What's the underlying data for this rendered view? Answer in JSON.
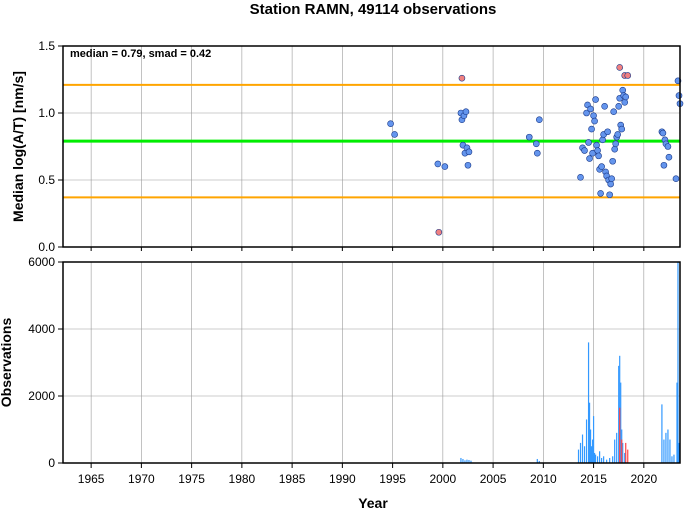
{
  "chart_data": [
    {
      "type": "scatter",
      "title": "Station RAMN, 49114 observations",
      "ylabel": "Median log(A/T) [nm/s]",
      "xlim": [
        1962.2,
        2023.6
      ],
      "ylim": [
        0,
        1.5
      ],
      "yticks": [
        "0.0",
        "0.5",
        "1.0",
        "1.5"
      ],
      "grid": true,
      "annotation": "median = 0.79, smad = 0.42",
      "reference_lines": [
        {
          "y": 1.21,
          "color": "#ffa500"
        },
        {
          "y": 0.79,
          "color": "#00ee00"
        },
        {
          "y": 0.37,
          "color": "#ffa500"
        }
      ],
      "series": [
        {
          "color": "#6495ed",
          "points": [
            [
              1994.8,
              0.92
            ],
            [
              1995.2,
              0.84
            ],
            [
              1999.5,
              0.62
            ],
            [
              2000.2,
              0.6
            ],
            [
              2001.8,
              1.0
            ],
            [
              2001.9,
              0.95
            ],
            [
              2002.1,
              0.98
            ],
            [
              2002.3,
              1.01
            ],
            [
              2002.0,
              0.76
            ],
            [
              2002.2,
              0.7
            ],
            [
              2002.4,
              0.74
            ],
            [
              2002.6,
              0.71
            ],
            [
              2002.5,
              0.61
            ],
            [
              2008.6,
              0.82
            ],
            [
              2009.3,
              0.77
            ],
            [
              2009.4,
              0.7
            ],
            [
              2009.6,
              0.95
            ],
            [
              2013.7,
              0.52
            ],
            [
              2013.9,
              0.74
            ],
            [
              2014.1,
              0.72
            ],
            [
              2014.3,
              1.0
            ],
            [
              2014.4,
              1.06
            ],
            [
              2014.5,
              0.78
            ],
            [
              2014.6,
              0.66
            ],
            [
              2014.7,
              1.03
            ],
            [
              2014.8,
              0.88
            ],
            [
              2014.9,
              0.7
            ],
            [
              2015.0,
              0.98
            ],
            [
              2015.1,
              0.94
            ],
            [
              2015.2,
              1.1
            ],
            [
              2015.3,
              0.76
            ],
            [
              2015.4,
              0.72
            ],
            [
              2015.5,
              0.68
            ],
            [
              2015.6,
              0.58
            ],
            [
              2015.7,
              0.4
            ],
            [
              2015.8,
              0.6
            ],
            [
              2015.9,
              0.8
            ],
            [
              2016.0,
              0.84
            ],
            [
              2016.1,
              1.05
            ],
            [
              2016.2,
              0.56
            ],
            [
              2016.3,
              0.53
            ],
            [
              2016.4,
              0.86
            ],
            [
              2016.5,
              0.5
            ],
            [
              2016.6,
              0.39
            ],
            [
              2016.7,
              0.47
            ],
            [
              2016.8,
              0.51
            ],
            [
              2016.9,
              0.64
            ],
            [
              2017.0,
              1.01
            ],
            [
              2017.1,
              0.73
            ],
            [
              2017.2,
              0.77
            ],
            [
              2017.3,
              0.82
            ],
            [
              2017.4,
              0.84
            ],
            [
              2017.5,
              1.05
            ],
            [
              2017.6,
              1.11
            ],
            [
              2017.7,
              0.91
            ],
            [
              2017.8,
              0.88
            ],
            [
              2017.9,
              1.17
            ],
            [
              2018.0,
              1.13
            ],
            [
              2018.1,
              1.08
            ],
            [
              2018.2,
              1.12
            ],
            [
              2021.8,
              0.86
            ],
            [
              2021.9,
              0.85
            ],
            [
              2022.0,
              0.61
            ],
            [
              2022.1,
              0.8
            ],
            [
              2022.2,
              0.77
            ],
            [
              2022.4,
              0.75
            ],
            [
              2022.5,
              0.67
            ],
            [
              2023.2,
              0.51
            ],
            [
              2023.4,
              1.24
            ],
            [
              2023.5,
              1.13
            ],
            [
              2023.6,
              1.07
            ]
          ]
        },
        {
          "color": "#f08080",
          "points": [
            [
              1999.6,
              0.11
            ],
            [
              2001.9,
              1.26
            ],
            [
              2017.6,
              1.34
            ],
            [
              2018.1,
              1.28
            ],
            [
              2018.4,
              1.28
            ]
          ]
        }
      ]
    },
    {
      "type": "bar",
      "xlabel": "Year",
      "ylabel": "Observations",
      "xlim": [
        1962.2,
        2023.6
      ],
      "ylim": [
        0,
        6000
      ],
      "xticks": [
        "1965",
        "1970",
        "1975",
        "1980",
        "1985",
        "1990",
        "1995",
        "2000",
        "2005",
        "2010",
        "2015",
        "2020"
      ],
      "yticks": [
        "0",
        "2000",
        "4000",
        "6000"
      ],
      "grid": true,
      "series": [
        {
          "color": "#3399ff",
          "bars": [
            [
              2001.8,
              150
            ],
            [
              2002.0,
              120
            ],
            [
              2002.2,
              80
            ],
            [
              2002.4,
              100
            ],
            [
              2002.6,
              90
            ],
            [
              2002.8,
              70
            ],
            [
              2009.4,
              120
            ],
            [
              2009.6,
              60
            ],
            [
              2013.5,
              400
            ],
            [
              2013.7,
              600
            ],
            [
              2013.9,
              850
            ],
            [
              2014.1,
              500
            ],
            [
              2014.3,
              1300
            ],
            [
              2014.5,
              3600
            ],
            [
              2014.6,
              1800
            ],
            [
              2014.7,
              1000
            ],
            [
              2014.8,
              500
            ],
            [
              2014.9,
              700
            ],
            [
              2015.0,
              1400
            ],
            [
              2015.1,
              300
            ],
            [
              2015.2,
              250
            ],
            [
              2015.4,
              200
            ],
            [
              2015.6,
              350
            ],
            [
              2015.8,
              150
            ],
            [
              2016.0,
              200
            ],
            [
              2016.3,
              100
            ],
            [
              2016.6,
              150
            ],
            [
              2016.9,
              200
            ],
            [
              2017.1,
              700
            ],
            [
              2017.3,
              900
            ],
            [
              2017.5,
              2900
            ],
            [
              2017.6,
              3200
            ],
            [
              2017.7,
              2400
            ],
            [
              2017.8,
              1000
            ],
            [
              2017.9,
              600
            ],
            [
              2018.1,
              300
            ],
            [
              2021.8,
              1750
            ],
            [
              2022.0,
              700
            ],
            [
              2022.2,
              900
            ],
            [
              2022.4,
              1000
            ],
            [
              2022.6,
              700
            ],
            [
              2022.8,
              200
            ],
            [
              2023.0,
              250
            ],
            [
              2023.3,
              2400
            ],
            [
              2023.4,
              6000
            ],
            [
              2023.5,
              600
            ]
          ]
        },
        {
          "color": "#ff4444",
          "bars": [
            [
              2017.6,
              1650
            ],
            [
              2017.8,
              700
            ],
            [
              2018.2,
              600
            ],
            [
              2018.4,
              400
            ]
          ]
        }
      ]
    }
  ]
}
